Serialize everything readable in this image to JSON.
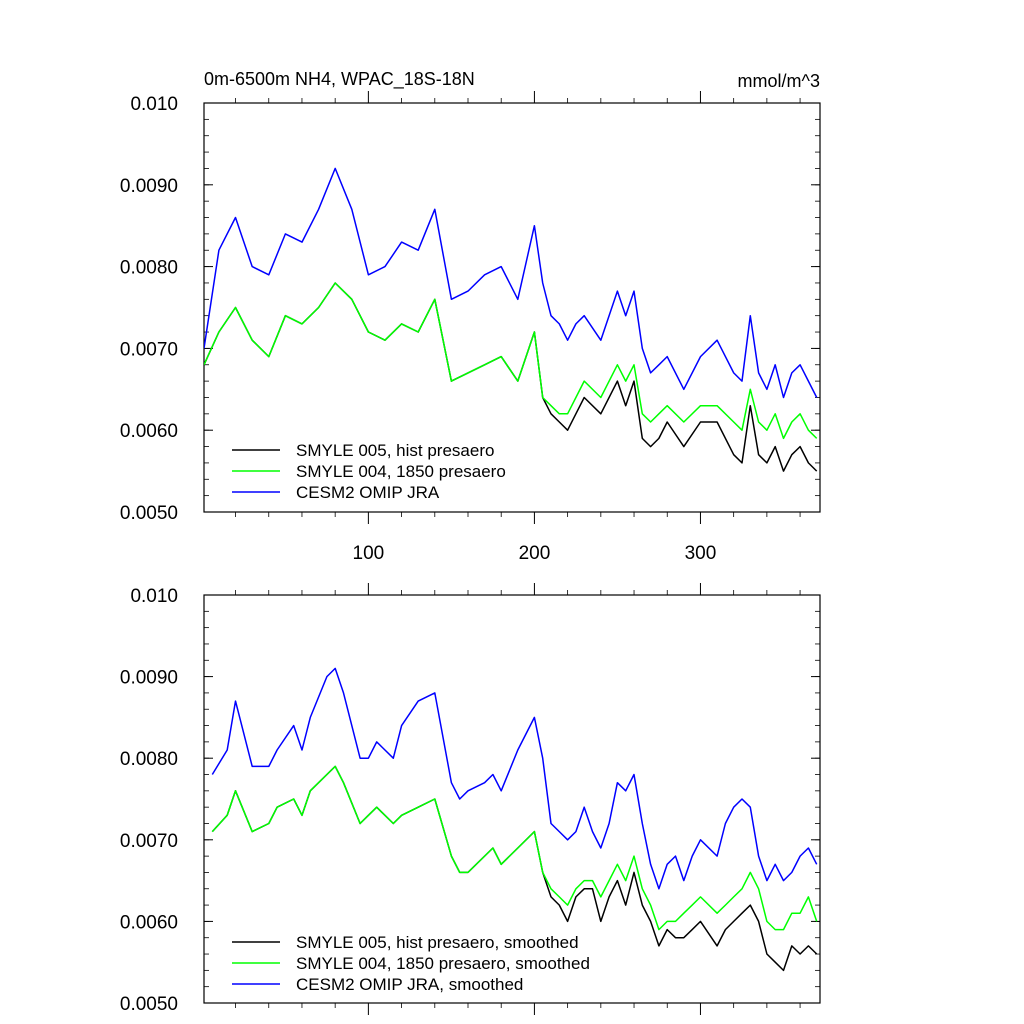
{
  "figure": {
    "title_left": "0m-6500m NH4, WPAC_18S-18N",
    "title_right": "mmol/m^3"
  },
  "chart_data": [
    {
      "type": "line",
      "panel": "top",
      "title": "0m-6500m NH4, WPAC_18S-18N",
      "units": "mmol/m^3",
      "xlabel": "",
      "ylabel": "",
      "xlim": [
        1,
        372
      ],
      "ylim": [
        0.005,
        0.01
      ],
      "yticks": [
        0.005,
        0.006,
        0.007,
        0.008,
        0.009,
        0.01
      ],
      "ytick_labels": [
        "0.0050",
        "0.0060",
        "0.0070",
        "0.0080",
        "0.0090",
        "0.010"
      ],
      "xticks": [
        100,
        200,
        300
      ],
      "xtick_labels": [
        "100",
        "200",
        "300"
      ],
      "legend_position": "bottom-left",
      "series": [
        {
          "name": "SMYLE 005, hist presaero",
          "color": "#000000",
          "x": [
            1,
            10,
            20,
            30,
            40,
            50,
            60,
            70,
            80,
            90,
            100,
            110,
            120,
            130,
            140,
            150,
            160,
            170,
            180,
            190,
            200,
            205,
            210,
            215,
            220,
            225,
            230,
            240,
            250,
            255,
            260,
            265,
            270,
            275,
            280,
            290,
            300,
            310,
            320,
            325,
            330,
            335,
            340,
            345,
            350,
            355,
            360,
            365,
            370
          ],
          "y": [
            0.0068,
            0.0072,
            0.0075,
            0.0071,
            0.0069,
            0.0074,
            0.0073,
            0.0075,
            0.0078,
            0.0076,
            0.0072,
            0.0071,
            0.0073,
            0.0072,
            0.0076,
            0.0066,
            0.0067,
            0.0068,
            0.0069,
            0.0066,
            0.0072,
            0.0064,
            0.0062,
            0.0061,
            0.006,
            0.0062,
            0.0064,
            0.0062,
            0.0066,
            0.0063,
            0.0066,
            0.0059,
            0.0058,
            0.0059,
            0.0061,
            0.0058,
            0.0061,
            0.0061,
            0.0057,
            0.0056,
            0.0063,
            0.0057,
            0.0056,
            0.0058,
            0.0055,
            0.0057,
            0.0058,
            0.0056,
            0.0055
          ]
        },
        {
          "name": "SMYLE 004, 1850 presaero",
          "color": "#00ff00",
          "x": [
            1,
            10,
            20,
            30,
            40,
            50,
            60,
            70,
            80,
            90,
            100,
            110,
            120,
            130,
            140,
            150,
            160,
            170,
            180,
            190,
            200,
            205,
            210,
            215,
            220,
            225,
            230,
            240,
            250,
            255,
            260,
            265,
            270,
            275,
            280,
            290,
            300,
            310,
            320,
            325,
            330,
            335,
            340,
            345,
            350,
            355,
            360,
            365,
            370
          ],
          "y": [
            0.0068,
            0.0072,
            0.0075,
            0.0071,
            0.0069,
            0.0074,
            0.0073,
            0.0075,
            0.0078,
            0.0076,
            0.0072,
            0.0071,
            0.0073,
            0.0072,
            0.0076,
            0.0066,
            0.0067,
            0.0068,
            0.0069,
            0.0066,
            0.0072,
            0.0064,
            0.0063,
            0.0062,
            0.0062,
            0.0064,
            0.0066,
            0.0064,
            0.0068,
            0.0066,
            0.0068,
            0.0062,
            0.0061,
            0.0062,
            0.0063,
            0.0061,
            0.0063,
            0.0063,
            0.0061,
            0.006,
            0.0065,
            0.0061,
            0.006,
            0.0062,
            0.0059,
            0.0061,
            0.0062,
            0.006,
            0.0059
          ]
        },
        {
          "name": "CESM2 OMIP JRA",
          "color": "#0000ff",
          "x": [
            1,
            10,
            20,
            30,
            40,
            50,
            60,
            70,
            80,
            90,
            100,
            110,
            120,
            130,
            140,
            150,
            160,
            170,
            180,
            190,
            200,
            205,
            210,
            215,
            220,
            225,
            230,
            240,
            250,
            255,
            260,
            265,
            270,
            275,
            280,
            290,
            300,
            310,
            320,
            325,
            330,
            335,
            340,
            345,
            350,
            355,
            360,
            365,
            370
          ],
          "y": [
            0.007,
            0.0082,
            0.0086,
            0.008,
            0.0079,
            0.0084,
            0.0083,
            0.0087,
            0.0092,
            0.0087,
            0.0079,
            0.008,
            0.0083,
            0.0082,
            0.0087,
            0.0076,
            0.0077,
            0.0079,
            0.008,
            0.0076,
            0.0085,
            0.0078,
            0.0074,
            0.0073,
            0.0071,
            0.0073,
            0.0074,
            0.0071,
            0.0077,
            0.0074,
            0.0077,
            0.007,
            0.0067,
            0.0068,
            0.0069,
            0.0065,
            0.0069,
            0.0071,
            0.0067,
            0.0066,
            0.0074,
            0.0067,
            0.0065,
            0.0068,
            0.0064,
            0.0067,
            0.0068,
            0.0066,
            0.0064
          ]
        }
      ]
    },
    {
      "type": "line",
      "panel": "bottom",
      "xlabel": "",
      "ylabel": "",
      "xlim": [
        1,
        372
      ],
      "ylim": [
        0.005,
        0.01
      ],
      "yticks": [
        0.005,
        0.006,
        0.007,
        0.008,
        0.009,
        0.01
      ],
      "ytick_labels": [
        "0.0050",
        "0.0060",
        "0.0070",
        "0.0080",
        "0.0090",
        "0.010"
      ],
      "xticks": [
        100,
        200,
        300
      ],
      "legend_position": "bottom-left",
      "series": [
        {
          "name": "SMYLE 005, hist presaero, smoothed",
          "color": "#000000",
          "x": [
            6,
            15,
            20,
            30,
            40,
            45,
            55,
            60,
            65,
            75,
            80,
            85,
            95,
            100,
            105,
            115,
            120,
            130,
            140,
            150,
            155,
            160,
            170,
            175,
            180,
            190,
            200,
            205,
            210,
            215,
            220,
            225,
            230,
            235,
            240,
            245,
            250,
            255,
            260,
            265,
            270,
            275,
            280,
            285,
            290,
            295,
            300,
            310,
            315,
            320,
            325,
            330,
            335,
            340,
            345,
            350,
            355,
            360,
            365,
            370
          ],
          "y": [
            0.0071,
            0.0073,
            0.0076,
            0.0071,
            0.0072,
            0.0074,
            0.0075,
            0.0073,
            0.0076,
            0.0078,
            0.0079,
            0.0077,
            0.0072,
            0.0073,
            0.0074,
            0.0072,
            0.0073,
            0.0074,
            0.0075,
            0.0068,
            0.0066,
            0.0066,
            0.0068,
            0.0069,
            0.0067,
            0.0069,
            0.0071,
            0.0066,
            0.0063,
            0.0062,
            0.006,
            0.0063,
            0.0064,
            0.0064,
            0.006,
            0.0063,
            0.0065,
            0.0062,
            0.0066,
            0.0062,
            0.006,
            0.0057,
            0.0059,
            0.0058,
            0.0058,
            0.0059,
            0.006,
            0.0057,
            0.0059,
            0.006,
            0.0061,
            0.0062,
            0.006,
            0.0056,
            0.0055,
            0.0054,
            0.0057,
            0.0056,
            0.0057,
            0.0056
          ]
        },
        {
          "name": "SMYLE 004, 1850 presaero, smoothed",
          "color": "#00ff00",
          "x": [
            6,
            15,
            20,
            30,
            40,
            45,
            55,
            60,
            65,
            75,
            80,
            85,
            95,
            100,
            105,
            115,
            120,
            130,
            140,
            150,
            155,
            160,
            170,
            175,
            180,
            190,
            200,
            205,
            210,
            215,
            220,
            225,
            230,
            235,
            240,
            245,
            250,
            255,
            260,
            265,
            270,
            275,
            280,
            285,
            290,
            295,
            300,
            310,
            315,
            320,
            325,
            330,
            335,
            340,
            345,
            350,
            355,
            360,
            365,
            370
          ],
          "y": [
            0.0071,
            0.0073,
            0.0076,
            0.0071,
            0.0072,
            0.0074,
            0.0075,
            0.0073,
            0.0076,
            0.0078,
            0.0079,
            0.0077,
            0.0072,
            0.0073,
            0.0074,
            0.0072,
            0.0073,
            0.0074,
            0.0075,
            0.0068,
            0.0066,
            0.0066,
            0.0068,
            0.0069,
            0.0067,
            0.0069,
            0.0071,
            0.0066,
            0.0064,
            0.0063,
            0.0062,
            0.0064,
            0.0065,
            0.0065,
            0.0063,
            0.0065,
            0.0067,
            0.0065,
            0.0068,
            0.0064,
            0.0062,
            0.0059,
            0.006,
            0.006,
            0.0061,
            0.0062,
            0.0063,
            0.0061,
            0.0062,
            0.0063,
            0.0064,
            0.0066,
            0.0064,
            0.006,
            0.0059,
            0.0059,
            0.0061,
            0.0061,
            0.0063,
            0.006
          ]
        },
        {
          "name": "CESM2 OMIP JRA, smoothed",
          "color": "#0000ff",
          "x": [
            6,
            15,
            20,
            30,
            40,
            45,
            55,
            60,
            65,
            75,
            80,
            85,
            95,
            100,
            105,
            115,
            120,
            130,
            140,
            150,
            155,
            160,
            170,
            175,
            180,
            190,
            200,
            205,
            210,
            215,
            220,
            225,
            230,
            235,
            240,
            245,
            250,
            255,
            260,
            265,
            270,
            275,
            280,
            285,
            290,
            295,
            300,
            310,
            315,
            320,
            325,
            330,
            335,
            340,
            345,
            350,
            355,
            360,
            365,
            370
          ],
          "y": [
            0.0078,
            0.0081,
            0.0087,
            0.0079,
            0.0079,
            0.0081,
            0.0084,
            0.0081,
            0.0085,
            0.009,
            0.0091,
            0.0088,
            0.008,
            0.008,
            0.0082,
            0.008,
            0.0084,
            0.0087,
            0.0088,
            0.0077,
            0.0075,
            0.0076,
            0.0077,
            0.0078,
            0.0076,
            0.0081,
            0.0085,
            0.008,
            0.0072,
            0.0071,
            0.007,
            0.0071,
            0.0074,
            0.0071,
            0.0069,
            0.0072,
            0.0077,
            0.0076,
            0.0078,
            0.0072,
            0.0067,
            0.0064,
            0.0067,
            0.0068,
            0.0065,
            0.0068,
            0.007,
            0.0068,
            0.0072,
            0.0074,
            0.0075,
            0.0074,
            0.0068,
            0.0065,
            0.0067,
            0.0065,
            0.0066,
            0.0068,
            0.0069,
            0.0067
          ]
        }
      ]
    }
  ]
}
